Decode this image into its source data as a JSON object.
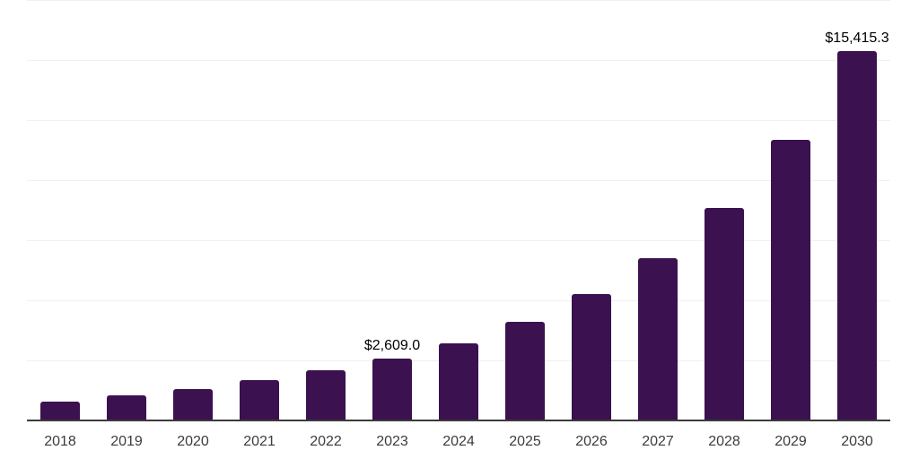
{
  "chart_data": {
    "type": "bar",
    "title": "",
    "xlabel": "",
    "ylabel": "",
    "categories": [
      "2018",
      "2019",
      "2020",
      "2021",
      "2022",
      "2023",
      "2024",
      "2025",
      "2026",
      "2027",
      "2028",
      "2029",
      "2030"
    ],
    "values": [
      820,
      1070,
      1355,
      1705,
      2115,
      2609.0,
      3260,
      4145,
      5290,
      6805,
      8870,
      11720,
      15415.3
    ],
    "value_labels": [
      "",
      "",
      "",
      "",
      "",
      "$2,609.0",
      "",
      "",
      "",
      "",
      "",
      "",
      "$15,415.3"
    ],
    "ylim": [
      0,
      17500
    ],
    "gridline_step": 2500,
    "grid": true,
    "legend": false
  },
  "colors": {
    "bar": "#3b114f",
    "axis": "#3b3b3b",
    "gridline": "#f0f0f0",
    "tick_label": "#3c3c3c",
    "data_label": "#000000",
    "background": "#ffffff"
  }
}
